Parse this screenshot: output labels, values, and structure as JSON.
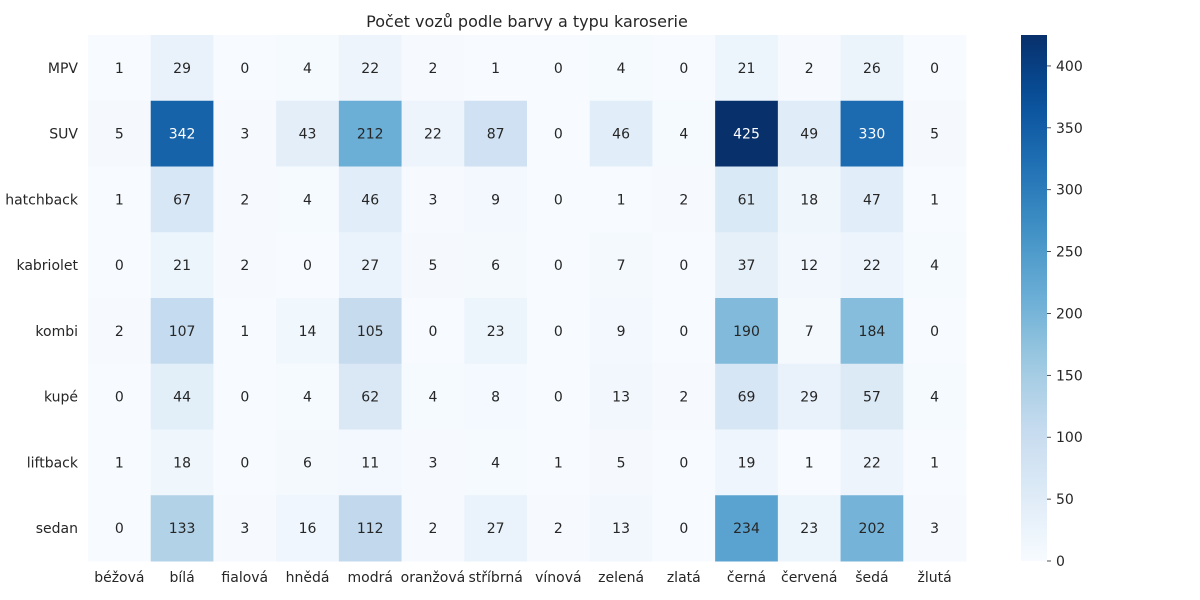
{
  "chart_data": {
    "type": "heatmap",
    "title": "Počet vozů podle barvy a typu karoserie",
    "xlabel": "",
    "ylabel": "",
    "x_categories": [
      "béžová",
      "bílá",
      "fialová",
      "hnědá",
      "modrá",
      "oranžová",
      "stříbrná",
      "vínová",
      "zelená",
      "zlatá",
      "černá",
      "červená",
      "šedá",
      "žlutá"
    ],
    "y_categories": [
      "MPV",
      "SUV",
      "hatchback",
      "kabriolet",
      "kombi",
      "kupé",
      "liftback",
      "sedan"
    ],
    "values": [
      [
        1,
        29,
        0,
        4,
        22,
        2,
        1,
        0,
        4,
        0,
        21,
        2,
        26,
        0
      ],
      [
        5,
        342,
        3,
        43,
        212,
        22,
        87,
        0,
        46,
        4,
        425,
        49,
        330,
        5
      ],
      [
        1,
        67,
        2,
        4,
        46,
        3,
        9,
        0,
        1,
        2,
        61,
        18,
        47,
        1
      ],
      [
        0,
        21,
        2,
        0,
        27,
        5,
        6,
        0,
        7,
        0,
        37,
        12,
        22,
        4
      ],
      [
        2,
        107,
        1,
        14,
        105,
        0,
        23,
        0,
        9,
        0,
        190,
        7,
        184,
        0
      ],
      [
        0,
        44,
        0,
        4,
        62,
        4,
        8,
        0,
        13,
        2,
        69,
        29,
        57,
        4
      ],
      [
        1,
        18,
        0,
        6,
        11,
        3,
        4,
        1,
        5,
        0,
        19,
        1,
        22,
        1
      ],
      [
        0,
        133,
        3,
        16,
        112,
        2,
        27,
        2,
        13,
        0,
        234,
        23,
        202,
        3
      ]
    ],
    "colormap": "Blues",
    "vmin": 0,
    "vmax": 425,
    "colorbar_ticks": [
      0,
      50,
      100,
      150,
      200,
      250,
      300,
      350,
      400
    ],
    "annotations": true
  }
}
